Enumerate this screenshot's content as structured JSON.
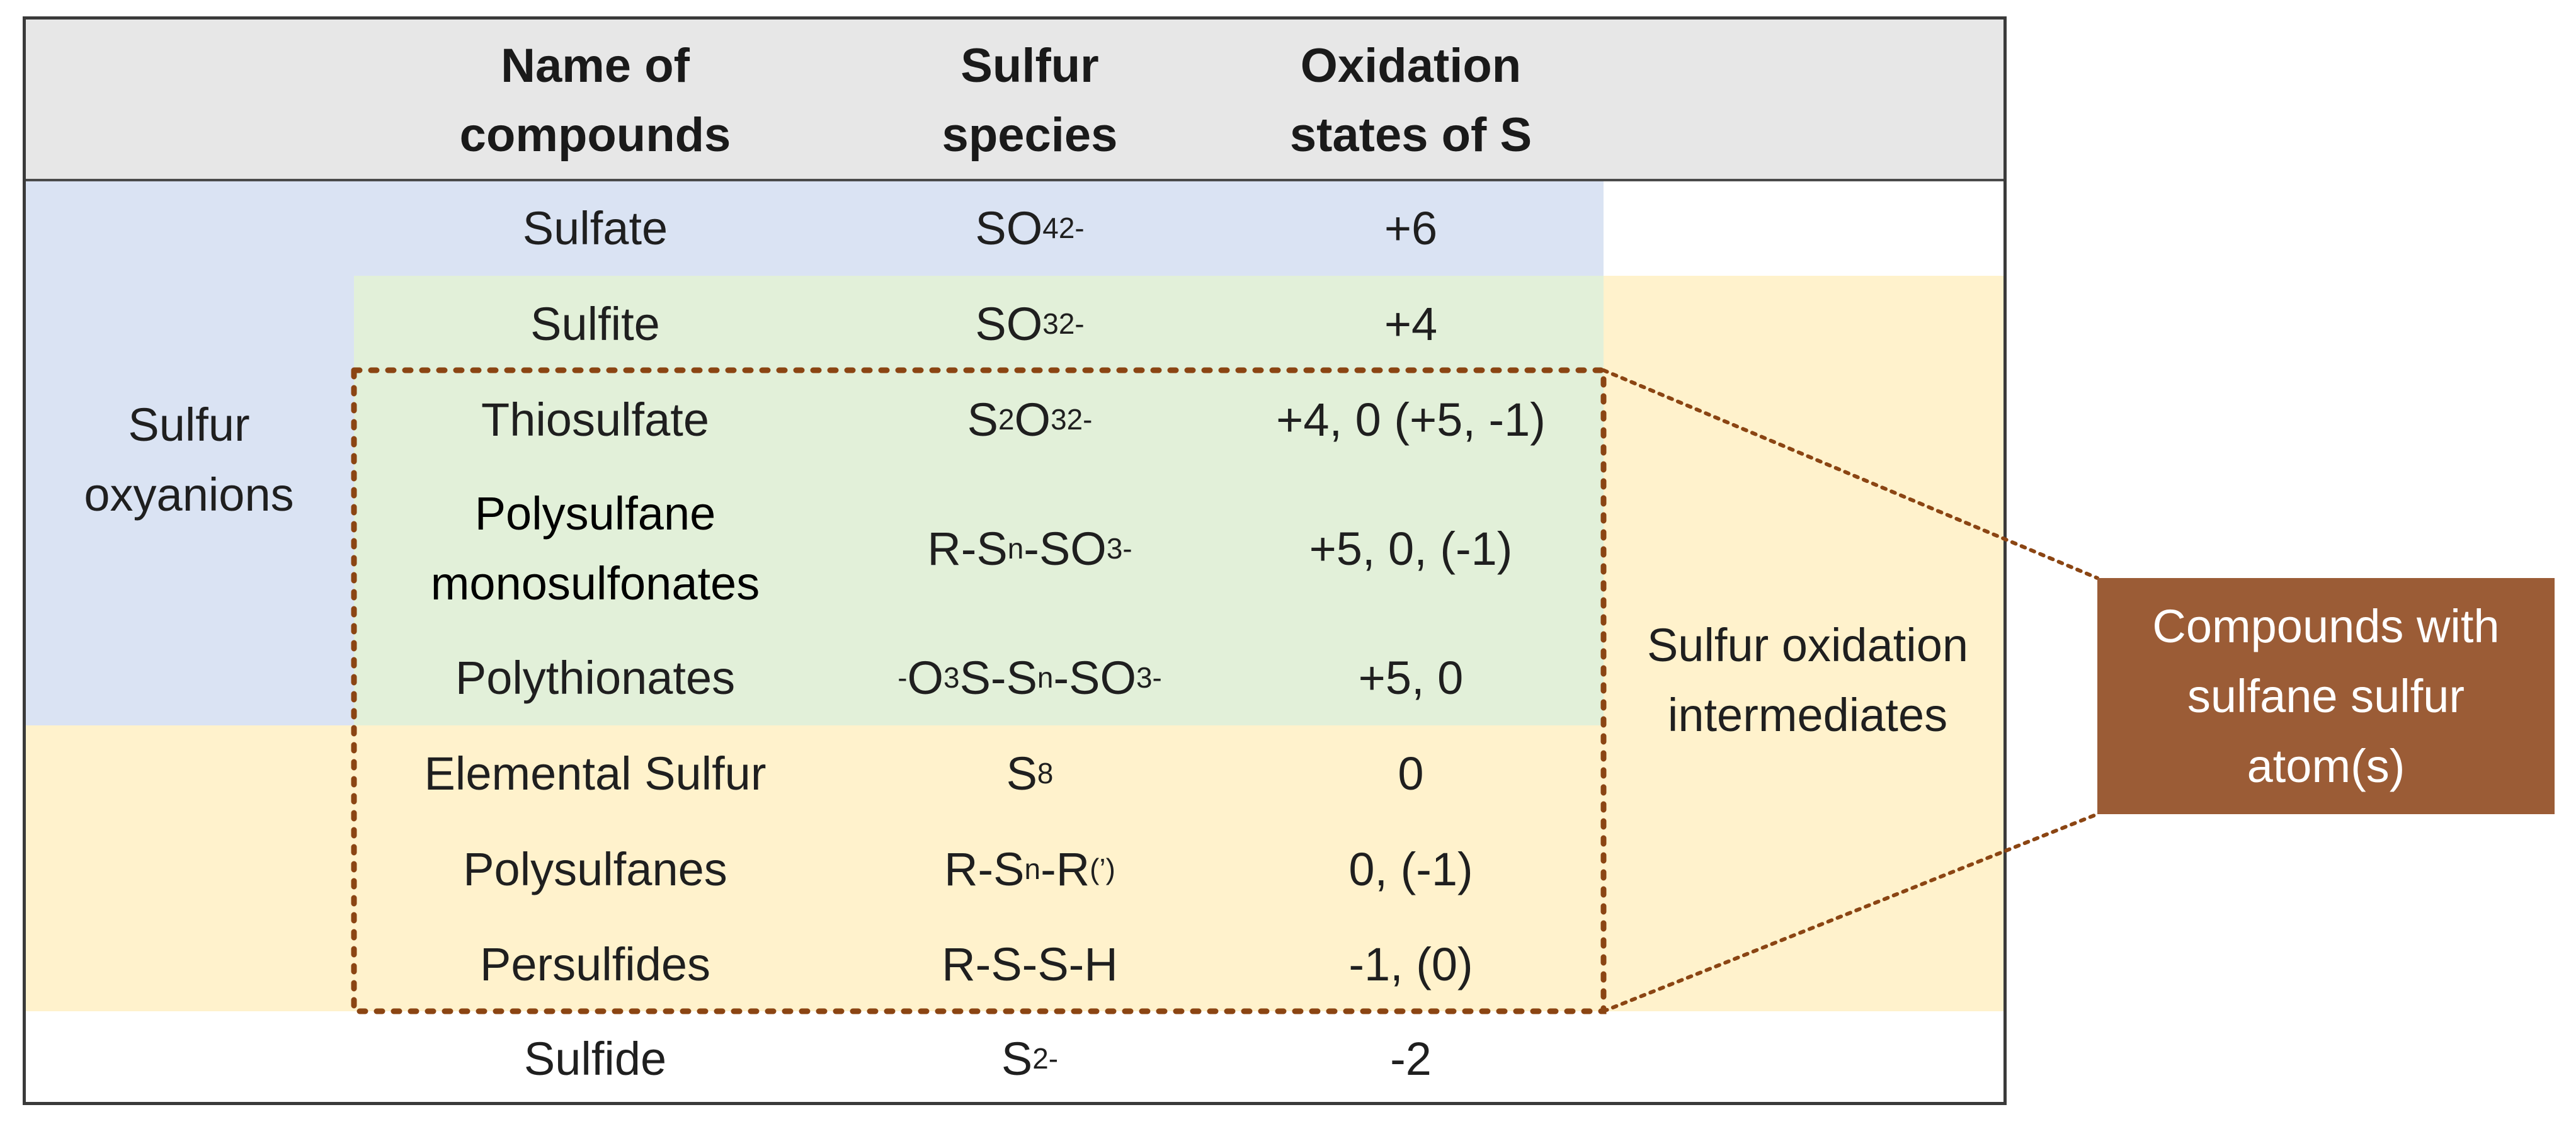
{
  "colors": {
    "header_bg": "#e7e7e7",
    "oxyanion_bg": "#dae3f3",
    "green_bg": "#e2f0d9",
    "intermediate_bg": "#fff2cc",
    "dotted_border": "#8b4513",
    "callout_bg": "#9b5c36",
    "callout_text": "#ffffff"
  },
  "header": {
    "name": "Name of compounds",
    "species": "Sulfur species",
    "oxidation": "Oxidation states of S"
  },
  "groups": {
    "oxyanions": "Sulfur oxyanions",
    "intermediates": "Sulfur oxidation intermediates"
  },
  "rows": [
    {
      "name": "Sulfate",
      "species_html": "SO<sub>4</sub><sup>2-</sup>",
      "oxidation": "+6"
    },
    {
      "name": "Sulfite",
      "species_html": "SO<sub>3</sub><sup>2-</sup>",
      "oxidation": "+4"
    },
    {
      "name": "Thiosulfate",
      "species_html": "S<sub>2</sub>O<sub>3</sub><sup>2-</sup>",
      "oxidation": "+4, 0 (+5, -1)"
    },
    {
      "name": "Polysulfane monosulfonates",
      "species_html": "R-S<sub>n</sub>-SO<sub>3</sub><sup>-</sup>",
      "oxidation": "+5, 0, (-1)"
    },
    {
      "name": "Polythionates",
      "species_html": "<sup>-</sup>O<sub>3</sub>S-S<sub>n</sub>-SO<sub>3</sub><sup>-</sup>",
      "oxidation": "+5, 0"
    },
    {
      "name": "Elemental Sulfur",
      "species_html": "S<sub>8</sub>",
      "oxidation": "0"
    },
    {
      "name": "Polysulfanes",
      "species_html": "R-S<sub>n</sub>-R<sup>(’)</sup>",
      "oxidation": "0, (-1)"
    },
    {
      "name": "Persulfides",
      "species_html": "R-S-S-H",
      "oxidation": "-1, (0)"
    },
    {
      "name": "Sulfide",
      "species_html": "S<sup>2-</sup>",
      "oxidation": "-2"
    }
  ],
  "callout": {
    "text": "Compounds with\nsulfane sulfur\natom(s)"
  }
}
